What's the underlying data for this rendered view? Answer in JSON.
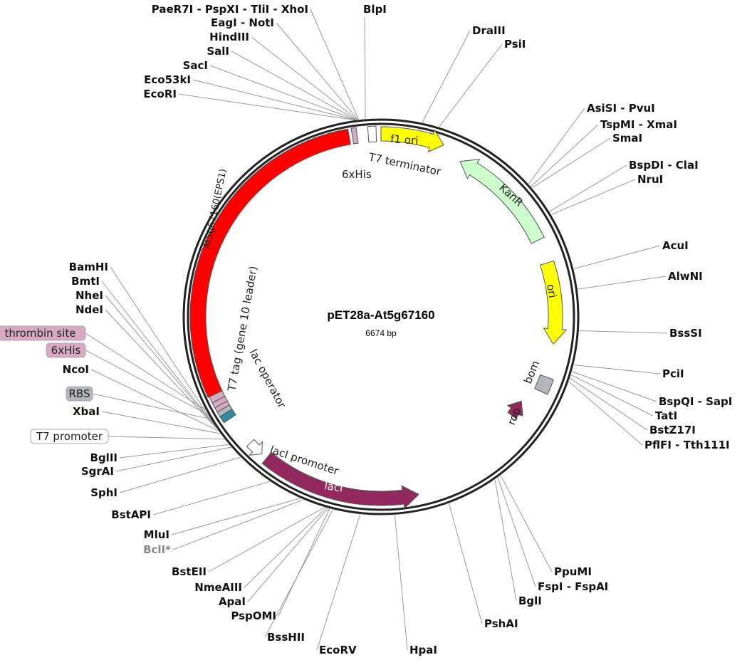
{
  "plasmid": {
    "name": "pET28a-At5g67160",
    "size": "6674 bp"
  },
  "colors": {
    "cds": "#ff0000",
    "ori": "#ffff00",
    "kanr": "#ccffcc",
    "laci": "#93285e",
    "tag": "#d7a9c5",
    "rbs": "#b3b6bd",
    "operator": "#2f8e9e"
  },
  "sites": [
    {
      "label": "PaeR7I - PspXI - TliI - XhoI"
    },
    {
      "label": "EagI - NotI"
    },
    {
      "label": "HindIII"
    },
    {
      "label": "SalI"
    },
    {
      "label": "SacI"
    },
    {
      "label": "Eco53kI"
    },
    {
      "label": "EcoRI"
    },
    {
      "label": "BlpI"
    },
    {
      "label": "DraIII"
    },
    {
      "label": "PsiI"
    },
    {
      "label": "AsiSI - PvuI"
    },
    {
      "label": "TspMI - XmaI"
    },
    {
      "label": "SmaI"
    },
    {
      "label": "BspDI - ClaI"
    },
    {
      "label": "NruI"
    },
    {
      "label": "AcuI"
    },
    {
      "label": "AlwNI"
    },
    {
      "label": "BssSI"
    },
    {
      "label": "PciI"
    },
    {
      "label": "BspQI - SapI"
    },
    {
      "label": "TatI"
    },
    {
      "label": "BstZ17I"
    },
    {
      "label": "PflFI - Tth111I"
    },
    {
      "label": "PpuMI"
    },
    {
      "label": "FspI - FspAI"
    },
    {
      "label": "BglI"
    },
    {
      "label": "PshAI"
    },
    {
      "label": "HpaI"
    },
    {
      "label": "EcoRV"
    },
    {
      "label": "BssHII"
    },
    {
      "label": "PspOMI"
    },
    {
      "label": "ApaI"
    },
    {
      "label": "NmeAIII"
    },
    {
      "label": "BstEII"
    },
    {
      "label": "BclI*"
    },
    {
      "label": "MluI"
    },
    {
      "label": "BstAPI"
    },
    {
      "label": "SphI"
    },
    {
      "label": "SgrAI"
    },
    {
      "label": "BglII"
    },
    {
      "label": "XbaI"
    },
    {
      "label": "NcoI"
    },
    {
      "label": "NdeI"
    },
    {
      "label": "NheI"
    },
    {
      "label": "BmtI"
    },
    {
      "label": "BamHI"
    }
  ],
  "boxed_features": [
    {
      "label": "thrombin site",
      "color": "#d7a9c5"
    },
    {
      "label": "6xHis",
      "color": "#d7a9c5"
    },
    {
      "label": "RBS",
      "color": "#b3b6bd"
    },
    {
      "label": "T7 promoter",
      "color": "#ffffff"
    }
  ],
  "features": {
    "cds": "At5g67160(EPS1)",
    "t7tag": "T7 tag (gene 10 leader)",
    "his_top": "6xHis",
    "t7term": "T7 terminator",
    "f1ori": "f1 ori",
    "kanr": "KanR",
    "ori": "ori",
    "bom": "bom",
    "rop": "rop",
    "lacop": "lac operator",
    "lacprom": "lacI promoter",
    "laci": "lacI"
  }
}
